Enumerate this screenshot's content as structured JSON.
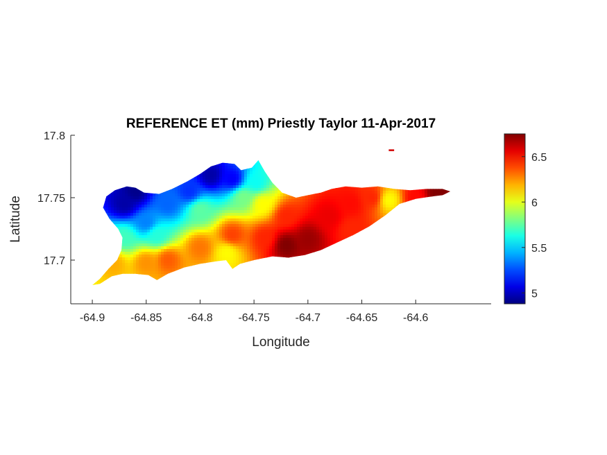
{
  "chart_data": {
    "type": "heatmap",
    "title": "REFERENCE ET (mm) Priestly Taylor 11-Apr-2017",
    "xlabel": "Longitude",
    "ylabel": "Latitude",
    "xlim": [
      -64.92,
      -64.53
    ],
    "ylim": [
      17.665,
      17.8
    ],
    "xticks": [
      -64.9,
      -64.85,
      -64.8,
      -64.75,
      -64.7,
      -64.65,
      -64.6
    ],
    "xtick_labels": [
      "-64.9",
      "-64.85",
      "-64.8",
      "-64.75",
      "-64.7",
      "-64.65",
      "-64.6"
    ],
    "yticks": [
      17.7,
      17.75,
      17.8
    ],
    "ytick_labels": [
      "17.7",
      "17.75",
      "17.8"
    ],
    "colorbar": {
      "colormap": "jet",
      "range": [
        4.88,
        6.75
      ],
      "ticks": [
        5,
        5.5,
        6,
        6.5
      ],
      "tick_labels": [
        "5",
        "5.5",
        "6",
        "6.5"
      ]
    },
    "region_outline": [
      [
        -64.9,
        17.68
      ],
      [
        -64.893,
        17.685
      ],
      [
        -64.885,
        17.693
      ],
      [
        -64.877,
        17.7
      ],
      [
        -64.873,
        17.708
      ],
      [
        -64.872,
        17.718
      ],
      [
        -64.876,
        17.725
      ],
      [
        -64.884,
        17.733
      ],
      [
        -64.89,
        17.742
      ],
      [
        -64.887,
        17.751
      ],
      [
        -64.879,
        17.756
      ],
      [
        -64.868,
        17.759
      ],
      [
        -64.86,
        17.758
      ],
      [
        -64.852,
        17.754
      ],
      [
        -64.838,
        17.753
      ],
      [
        -64.826,
        17.757
      ],
      [
        -64.812,
        17.763
      ],
      [
        -64.8,
        17.769
      ],
      [
        -64.79,
        17.775
      ],
      [
        -64.779,
        17.778
      ],
      [
        -64.768,
        17.777
      ],
      [
        -64.762,
        17.772
      ],
      [
        -64.752,
        17.774
      ],
      [
        -64.746,
        17.78
      ],
      [
        -64.74,
        17.771
      ],
      [
        -64.733,
        17.762
      ],
      [
        -64.724,
        17.754
      ],
      [
        -64.711,
        17.75
      ],
      [
        -64.7,
        17.752
      ],
      [
        -64.688,
        17.754
      ],
      [
        -64.678,
        17.757
      ],
      [
        -64.665,
        17.759
      ],
      [
        -64.65,
        17.758
      ],
      [
        -64.635,
        17.759
      ],
      [
        -64.62,
        17.757
      ],
      [
        -64.605,
        17.756
      ],
      [
        -64.59,
        17.757
      ],
      [
        -64.575,
        17.757
      ],
      [
        -64.568,
        17.755
      ],
      [
        -64.575,
        17.752
      ],
      [
        -64.585,
        17.751
      ],
      [
        -64.6,
        17.749
      ],
      [
        -64.615,
        17.745
      ],
      [
        -64.628,
        17.736
      ],
      [
        -64.643,
        17.727
      ],
      [
        -64.658,
        17.72
      ],
      [
        -64.673,
        17.714
      ],
      [
        -64.688,
        17.708
      ],
      [
        -64.703,
        17.704
      ],
      [
        -64.718,
        17.702
      ],
      [
        -64.733,
        17.703
      ],
      [
        -64.75,
        17.7
      ],
      [
        -64.763,
        17.697
      ],
      [
        -64.77,
        17.693
      ],
      [
        -64.776,
        17.7
      ],
      [
        -64.785,
        17.699
      ],
      [
        -64.8,
        17.697
      ],
      [
        -64.815,
        17.694
      ],
      [
        -64.83,
        17.689
      ],
      [
        -64.84,
        17.684
      ],
      [
        -64.848,
        17.688
      ],
      [
        -64.86,
        17.689
      ],
      [
        -64.872,
        17.689
      ],
      [
        -64.882,
        17.687
      ],
      [
        -64.893,
        17.681
      ]
    ],
    "islet": [
      [
        -64.625,
        17.788
      ],
      [
        -64.62,
        17.788
      ]
    ],
    "et_samples": [
      {
        "lon": -64.87,
        "lat": 17.745,
        "value": 4.95
      },
      {
        "lon": -64.86,
        "lat": 17.755,
        "value": 4.9
      },
      {
        "lon": -64.85,
        "lat": 17.73,
        "value": 5.35
      },
      {
        "lon": -64.83,
        "lat": 17.745,
        "value": 5.3
      },
      {
        "lon": -64.79,
        "lat": 17.768,
        "value": 4.95
      },
      {
        "lon": -64.77,
        "lat": 17.765,
        "value": 5.1
      },
      {
        "lon": -64.81,
        "lat": 17.755,
        "value": 5.2
      },
      {
        "lon": -64.87,
        "lat": 17.718,
        "value": 5.7
      },
      {
        "lon": -64.84,
        "lat": 17.72,
        "value": 5.65
      },
      {
        "lon": -64.8,
        "lat": 17.74,
        "value": 5.75
      },
      {
        "lon": -64.76,
        "lat": 17.75,
        "value": 5.8
      },
      {
        "lon": -64.748,
        "lat": 17.762,
        "value": 5.6
      },
      {
        "lon": -64.742,
        "lat": 17.745,
        "value": 6.05
      },
      {
        "lon": -64.88,
        "lat": 17.697,
        "value": 6.2
      },
      {
        "lon": -64.85,
        "lat": 17.698,
        "value": 6.25
      },
      {
        "lon": -64.83,
        "lat": 17.7,
        "value": 6.35
      },
      {
        "lon": -64.8,
        "lat": 17.71,
        "value": 6.3
      },
      {
        "lon": -64.775,
        "lat": 17.706,
        "value": 6.05
      },
      {
        "lon": -64.77,
        "lat": 17.72,
        "value": 6.4
      },
      {
        "lon": -64.74,
        "lat": 17.718,
        "value": 6.45
      },
      {
        "lon": -64.72,
        "lat": 17.712,
        "value": 6.75
      },
      {
        "lon": -64.7,
        "lat": 17.717,
        "value": 6.7
      },
      {
        "lon": -64.72,
        "lat": 17.735,
        "value": 6.45
      },
      {
        "lon": -64.68,
        "lat": 17.735,
        "value": 6.55
      },
      {
        "lon": -64.66,
        "lat": 17.745,
        "value": 6.5
      },
      {
        "lon": -64.64,
        "lat": 17.75,
        "value": 6.45
      },
      {
        "lon": -64.625,
        "lat": 17.748,
        "value": 6.05
      },
      {
        "lon": -64.6,
        "lat": 17.75,
        "value": 6.5
      },
      {
        "lon": -64.58,
        "lat": 17.754,
        "value": 6.75
      },
      {
        "lon": -64.66,
        "lat": 17.725,
        "value": 6.45
      }
    ]
  }
}
